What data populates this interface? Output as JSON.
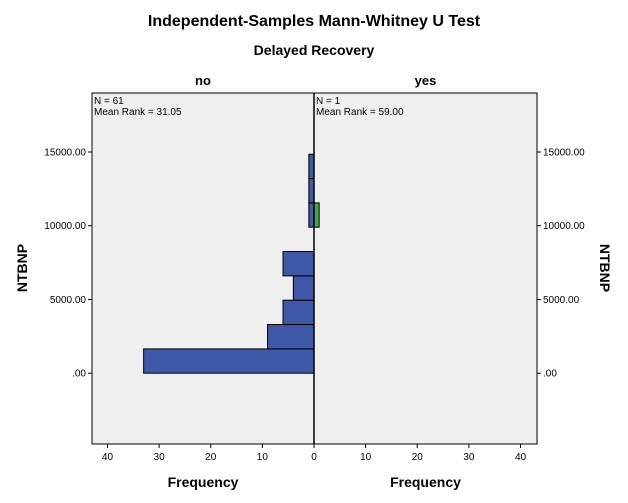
{
  "chart_data": {
    "type": "bar",
    "orientation": "horizontal-population-pyramid",
    "title": "Independent-Samples Mann-Whitney U Test",
    "subtitle": "Delayed Recovery",
    "ylabel": "NTBNP",
    "xlabel_left": "Frequency",
    "xlabel_right": "Frequency",
    "ylim": [
      -4800,
      19000
    ],
    "xlim": [
      0,
      43
    ],
    "y_ticks": [
      0,
      5000,
      10000,
      15000
    ],
    "y_tick_labels": [
      ".00",
      "5000.00",
      "10000.00",
      "15000.00"
    ],
    "x_ticks": [
      0,
      10,
      20,
      30,
      40
    ],
    "x_tick_labels": [
      "0",
      "10",
      "20",
      "30",
      "40"
    ],
    "bin_width": 1650,
    "colors": {
      "no": "#3f58a8",
      "yes": "#43a843",
      "panel": "#efefef"
    },
    "groups": [
      {
        "name": "no",
        "side": "left",
        "stats": [
          "N = 61",
          "Mean Rank = 31.05"
        ],
        "bins": [
          {
            "y_start": 0,
            "y_end": 1650,
            "count": 33
          },
          {
            "y_start": 1650,
            "y_end": 3300,
            "count": 9
          },
          {
            "y_start": 3300,
            "y_end": 4950,
            "count": 6
          },
          {
            "y_start": 4950,
            "y_end": 6600,
            "count": 4
          },
          {
            "y_start": 6600,
            "y_end": 8250,
            "count": 6
          },
          {
            "y_start": 9900,
            "y_end": 11550,
            "count": 1
          },
          {
            "y_start": 11550,
            "y_end": 13200,
            "count": 1
          },
          {
            "y_start": 13200,
            "y_end": 14850,
            "count": 1
          }
        ]
      },
      {
        "name": "yes",
        "side": "right",
        "stats": [
          "N = 1",
          "Mean Rank = 59.00"
        ],
        "bins": [
          {
            "y_start": 9900,
            "y_end": 11550,
            "count": 1
          }
        ]
      }
    ]
  }
}
